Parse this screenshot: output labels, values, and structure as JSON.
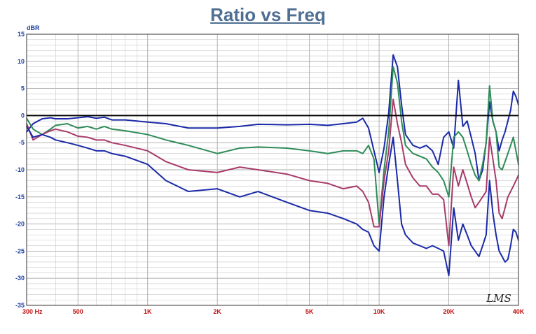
{
  "chart_data": {
    "type": "line",
    "title": "Ratio vs Freq",
    "y_unit_label": "dBR",
    "watermark": "LMS",
    "xscale": "log",
    "xlim": [
      300,
      40000
    ],
    "ylim": [
      -35,
      15
    ],
    "ytick_step": 5,
    "ytick_labels": [
      "15",
      "10",
      "5",
      "0",
      "-5",
      "-10",
      "-15",
      "-20",
      "-25",
      "-30",
      "-35"
    ],
    "xtick_labels": [
      {
        "value": 300,
        "label": "300  Hz"
      },
      {
        "value": 500,
        "label": "500"
      },
      {
        "value": 1000,
        "label": "1K"
      },
      {
        "value": 2000,
        "label": "2K"
      },
      {
        "value": 5000,
        "label": "5K"
      },
      {
        "value": 10000,
        "label": "10K"
      },
      {
        "value": 20000,
        "label": "20K"
      },
      {
        "value": 40000,
        "label": "40K"
      }
    ],
    "grid": true,
    "zero_line": true,
    "colors": {
      "grid": "#c8c8c8",
      "frame": "#555555",
      "zero_line": "#000000",
      "title": "#4f6f93",
      "ytick": "#1c3f9e",
      "xtick": "#c01010"
    },
    "series": [
      {
        "color": "#1a2aa8",
        "x": [
          300,
          320,
          350,
          380,
          400,
          450,
          500,
          550,
          600,
          650,
          700,
          800,
          1000,
          1200,
          1500,
          2000,
          2500,
          3000,
          4000,
          5000,
          6000,
          7000,
          8000,
          8500,
          9000,
          9500,
          10000,
          10500,
          11000,
          11500,
          12000,
          12500,
          13000,
          14000,
          15000,
          16000,
          17000,
          18000,
          19000,
          20000,
          21000,
          22000,
          23000,
          24000,
          25000,
          26000,
          27000,
          28000,
          29000,
          30000,
          31000,
          32000,
          33000,
          34000,
          35000,
          36000,
          37000,
          38000,
          39000,
          40000
        ],
        "y": [
          -3,
          -1.5,
          -0.6,
          -0.4,
          -0.6,
          -0.6,
          -0.4,
          -0.2,
          -0.5,
          -0.3,
          -0.8,
          -0.8,
          -1.2,
          -1.5,
          -2.3,
          -2.3,
          -2.0,
          -1.6,
          -1.7,
          -1.6,
          -1.8,
          -1.5,
          -1.2,
          -0.5,
          -2.3,
          -6.5,
          -10.5,
          -6.0,
          0.5,
          11.2,
          9.0,
          2.0,
          -3.5,
          -5.5,
          -6.0,
          -5.5,
          -6.5,
          -9.0,
          -4.0,
          -3.0,
          -6.0,
          6.5,
          -2.0,
          -1.0,
          -4.0,
          -7.0,
          -12.0,
          -10.0,
          -5.0,
          2.5,
          -1.0,
          -3.0,
          -6.5,
          -4.5,
          -3.0,
          -1.0,
          1.0,
          4.5,
          3.5,
          2.0
        ]
      },
      {
        "color": "#2e8b57",
        "x": [
          300,
          320,
          350,
          380,
          400,
          450,
          500,
          550,
          600,
          650,
          700,
          800,
          1000,
          1200,
          1500,
          2000,
          2500,
          3000,
          4000,
          5000,
          6000,
          7000,
          8000,
          8500,
          9000,
          9500,
          10000,
          10500,
          11000,
          11500,
          12000,
          12500,
          13000,
          14000,
          15000,
          16000,
          17000,
          18000,
          19000,
          20000,
          21000,
          22000,
          23000,
          24000,
          25000,
          26000,
          27000,
          28000,
          29000,
          30000,
          31000,
          32000,
          33000,
          34000,
          35000,
          36000,
          37000,
          38000,
          39000,
          40000
        ],
        "y": [
          -0.5,
          -2.5,
          -3.5,
          -2.5,
          -1.8,
          -1.5,
          -2.3,
          -2.0,
          -2.5,
          -2.0,
          -2.5,
          -2.8,
          -3.5,
          -4.5,
          -5.5,
          -7.0,
          -6.0,
          -5.8,
          -6.0,
          -6.5,
          -7.0,
          -6.5,
          -6.5,
          -7.0,
          -5.5,
          -8.0,
          -20.0,
          -10.0,
          -3.0,
          9.0,
          6.0,
          -1.0,
          -5.5,
          -7.0,
          -7.5,
          -8.0,
          -9.5,
          -10.5,
          -12.0,
          -15.0,
          -4.0,
          -3.0,
          -4.0,
          -6.5,
          -9.0,
          -11.0,
          -12.0,
          -9.0,
          -5.0,
          5.5,
          -1.0,
          -3.0,
          -9.5,
          -10.0,
          -8.5,
          -7.0,
          -5.5,
          -4.0,
          -6.5,
          -9.0
        ]
      },
      {
        "color": "#a83a6a",
        "x": [
          300,
          320,
          350,
          380,
          400,
          450,
          500,
          550,
          600,
          650,
          700,
          800,
          1000,
          1200,
          1500,
          2000,
          2500,
          3000,
          4000,
          5000,
          6000,
          7000,
          8000,
          8500,
          9000,
          9500,
          10000,
          10500,
          11000,
          11500,
          12000,
          12500,
          13000,
          14000,
          15000,
          16000,
          17000,
          18000,
          19000,
          20000,
          21000,
          22000,
          23000,
          24000,
          25000,
          26000,
          27000,
          28000,
          29000,
          30000,
          31000,
          32000,
          33000,
          34000,
          35000,
          36000,
          37000,
          38000,
          39000,
          40000
        ],
        "y": [
          -1.5,
          -4.5,
          -3.5,
          -2.8,
          -2.5,
          -3.0,
          -3.8,
          -4.0,
          -4.5,
          -4.5,
          -5.0,
          -5.5,
          -6.5,
          -8.5,
          -10.0,
          -10.5,
          -9.5,
          -10.0,
          -10.8,
          -12.0,
          -12.5,
          -13.5,
          -13.0,
          -14.0,
          -16.0,
          -20.5,
          -20.5,
          -12.0,
          -6.5,
          3.0,
          -1.5,
          -5.0,
          -9.0,
          -11.5,
          -13.0,
          -13.0,
          -14.5,
          -14.5,
          -15.5,
          -24.0,
          -9.5,
          -13.0,
          -10.0,
          -12.5,
          -15.0,
          -17.0,
          -16.0,
          -15.0,
          -14.0,
          -4.0,
          -8.0,
          -12.0,
          -18.0,
          -19.0,
          -17.0,
          -15.0,
          -14.0,
          -13.0,
          -12.0,
          -11.0
        ]
      },
      {
        "color": "#1a2aa8",
        "x": [
          300,
          320,
          350,
          380,
          400,
          450,
          500,
          550,
          600,
          650,
          700,
          800,
          1000,
          1200,
          1500,
          2000,
          2500,
          3000,
          4000,
          5000,
          6000,
          7000,
          8000,
          8500,
          9000,
          9500,
          10000,
          10500,
          11000,
          11500,
          12000,
          12500,
          13000,
          14000,
          15000,
          16000,
          17000,
          18000,
          19000,
          20000,
          21000,
          22000,
          23000,
          24000,
          25000,
          26000,
          27000,
          28000,
          29000,
          30000,
          31000,
          32000,
          33000,
          34000,
          35000,
          36000,
          37000,
          38000,
          39000,
          40000
        ],
        "y": [
          -2.0,
          -4.0,
          -3.5,
          -4.0,
          -4.5,
          -5.0,
          -5.5,
          -6.0,
          -6.5,
          -6.5,
          -7.0,
          -7.5,
          -9.0,
          -12.0,
          -14.0,
          -13.5,
          -15.0,
          -14.0,
          -16.0,
          -17.5,
          -18.0,
          -19.0,
          -20.0,
          -21.0,
          -21.5,
          -24.0,
          -25.0,
          -15.0,
          -9.0,
          -4.0,
          -12.0,
          -20.0,
          -22.0,
          -23.5,
          -24.0,
          -24.5,
          -24.0,
          -24.5,
          -25.0,
          -29.5,
          -17.0,
          -23.0,
          -20.0,
          -22.0,
          -24.0,
          -25.0,
          -26.0,
          -24.0,
          -22.0,
          -12.0,
          -18.0,
          -22.0,
          -25.0,
          -26.0,
          -27.0,
          -26.5,
          -24.0,
          -21.0,
          -21.5,
          -23.0
        ]
      }
    ]
  }
}
